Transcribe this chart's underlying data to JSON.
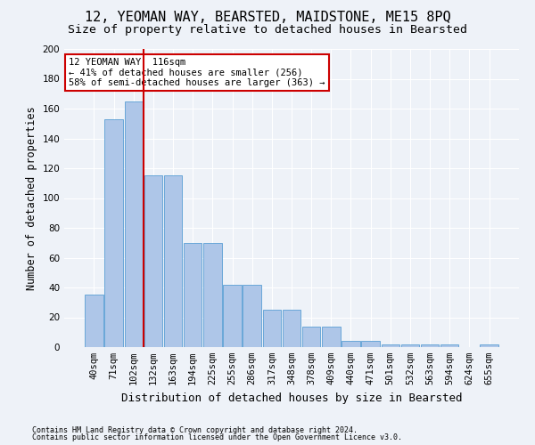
{
  "title": "12, YEOMAN WAY, BEARSTED, MAIDSTONE, ME15 8PQ",
  "subtitle": "Size of property relative to detached houses in Bearsted",
  "xlabel": "Distribution of detached houses by size in Bearsted",
  "ylabel": "Number of detached properties",
  "footnote1": "Contains HM Land Registry data © Crown copyright and database right 2024.",
  "footnote2": "Contains public sector information licensed under the Open Government Licence v3.0.",
  "categories": [
    "40sqm",
    "71sqm",
    "102sqm",
    "132sqm",
    "163sqm",
    "194sqm",
    "225sqm",
    "255sqm",
    "286sqm",
    "317sqm",
    "348sqm",
    "378sqm",
    "409sqm",
    "440sqm",
    "471sqm",
    "501sqm",
    "532sqm",
    "563sqm",
    "594sqm",
    "624sqm",
    "655sqm"
  ],
  "values": [
    35,
    153,
    165,
    115,
    115,
    70,
    70,
    42,
    42,
    25,
    25,
    14,
    14,
    4,
    4,
    2,
    2,
    2,
    2,
    0,
    2
  ],
  "bar_color": "#aec6e8",
  "bar_edge_color": "#5a9fd4",
  "annotation_text": "12 YEOMAN WAY: 116sqm\n← 41% of detached houses are smaller (256)\n58% of semi-detached houses are larger (363) →",
  "annotation_box_color": "#ffffff",
  "annotation_box_edge_color": "#cc0000",
  "annotation_line_color": "#cc0000",
  "line_x_index": 2.5,
  "ylim": [
    0,
    200
  ],
  "yticks": [
    0,
    20,
    40,
    60,
    80,
    100,
    120,
    140,
    160,
    180,
    200
  ],
  "background_color": "#eef2f8",
  "plot_background": "#eef2f8",
  "grid_color": "#ffffff",
  "title_fontsize": 11,
  "subtitle_fontsize": 9.5,
  "xlabel_fontsize": 9,
  "ylabel_fontsize": 8.5,
  "tick_fontsize": 7.5,
  "annotation_fontsize": 7.5,
  "footnote_fontsize": 6
}
